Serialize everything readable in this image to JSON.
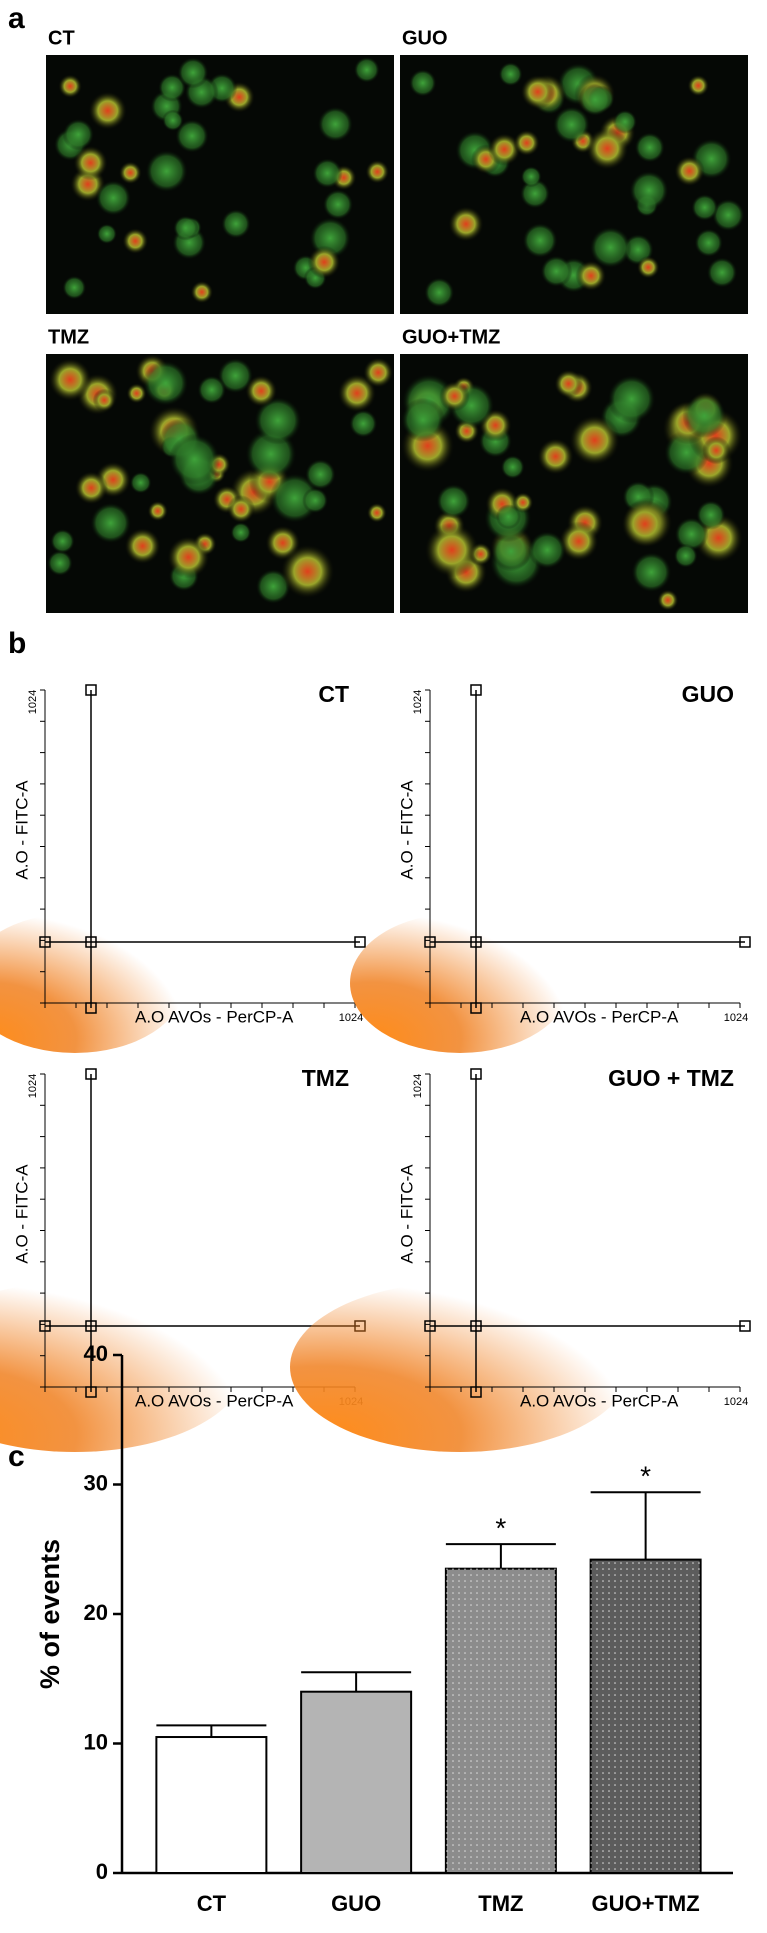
{
  "panel_a": {
    "label": "a",
    "images": [
      "CT",
      "GUO",
      "TMZ",
      "GUO+TMZ"
    ]
  },
  "panel_b": {
    "label": "b",
    "plots": [
      "CT",
      "GUO",
      "TMZ",
      "GUO + TMZ"
    ],
    "x_label": "A.O AVOs - PerCP-A",
    "y_label": "A.O - FITC-A",
    "axis_max": "1024"
  },
  "panel_c": {
    "label": "c"
  },
  "chart_data": {
    "type": "bar",
    "ylabel": "% of events",
    "categories": [
      "CT",
      "GUO",
      "TMZ",
      "GUO+TMZ"
    ],
    "values": [
      10.5,
      14,
      23.5,
      24.2
    ],
    "errors": [
      0.9,
      1.5,
      1.9,
      5.2
    ],
    "colors": [
      "#ffffff",
      "#b4b4b4",
      "#8c8c8c",
      "#5c5c5c"
    ],
    "annotations": [
      {
        "category": "TMZ",
        "text": "*"
      },
      {
        "category": "GUO+TMZ",
        "text": "*"
      }
    ],
    "ylim": [
      0,
      40
    ],
    "yticks": [
      0,
      10,
      20,
      30,
      40
    ]
  }
}
